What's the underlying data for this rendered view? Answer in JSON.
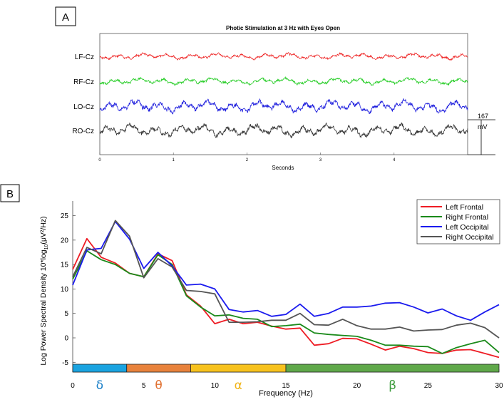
{
  "panel_a_label": "A",
  "panel_b_label": "B",
  "chart_data": [
    {
      "type": "line",
      "title": "Photic Stimulation at 3 Hz with Eyes Open",
      "xlabel": "Seconds",
      "ylabel": "",
      "xlim": [
        0,
        5
      ],
      "x_ticks": [
        0,
        1,
        2,
        3,
        4
      ],
      "x_tick_labels": [
        "0",
        "1",
        "2",
        "3",
        "4"
      ],
      "grid": false,
      "channels": [
        {
          "name": "LF-Cz",
          "color": "#ee2222",
          "amplitude": 0.5
        },
        {
          "name": "RF-Cz",
          "color": "#22cc22",
          "amplitude": 0.55
        },
        {
          "name": "LO-Cz",
          "color": "#1a1add",
          "amplitude": 1.0
        },
        {
          "name": "RO-Cz",
          "color": "#333333",
          "amplitude": 1.0
        }
      ],
      "scale_bar": {
        "value": "167",
        "unit": "mV"
      }
    },
    {
      "type": "line",
      "title": "",
      "xlabel": "Frequency (Hz)",
      "ylabel": "Log Power Spectral Density 10*log",
      "ylabel_sub": "10",
      "ylabel_unit": "(μV²/Hz)",
      "xlim": [
        0,
        30
      ],
      "ylim": [
        -7,
        28
      ],
      "x_ticks": [
        0,
        5,
        10,
        15,
        20,
        25,
        30
      ],
      "y_ticks": [
        -5,
        0,
        5,
        10,
        15,
        20,
        25
      ],
      "grid": false,
      "legend_position": "top-right",
      "x": [
        0,
        1,
        2,
        3,
        4,
        5,
        6,
        7,
        8,
        9,
        10,
        11,
        12,
        13,
        14,
        15,
        16,
        17,
        18,
        19,
        20,
        21,
        22,
        23,
        24,
        25,
        26,
        27,
        28,
        29,
        30
      ],
      "series": [
        {
          "name": "Left Frontal",
          "color": "#ee1c24",
          "values": [
            14,
            20.3,
            16.5,
            15.3,
            13.2,
            12.5,
            17.2,
            15.8,
            8.8,
            6.5,
            2.9,
            3.8,
            2.9,
            3.2,
            2.4,
            1.8,
            2.0,
            -1.5,
            -1.2,
            -0.1,
            -0.2,
            -1.3,
            -2.5,
            -1.7,
            -2.2,
            -3.0,
            -3.2,
            -2.5,
            -2.4,
            -3.2,
            -4.0
          ]
        },
        {
          "name": "Right Frontal",
          "color": "#1a8a1a",
          "values": [
            12,
            17.8,
            16.0,
            15.0,
            13.2,
            12.5,
            17.0,
            15.0,
            8.6,
            6.3,
            4.5,
            4.7,
            4.0,
            3.8,
            2.3,
            2.5,
            2.8,
            1.0,
            0.7,
            0.5,
            0.3,
            -0.5,
            -1.5,
            -1.5,
            -1.7,
            -1.8,
            -3.2,
            -2.0,
            -1.2,
            -0.5,
            -3.0
          ]
        },
        {
          "name": "Left Occipital",
          "color": "#1a1aee",
          "values": [
            10.8,
            18.0,
            18.3,
            23.8,
            20.2,
            14.2,
            17.5,
            14.7,
            10.8,
            11.0,
            10.0,
            5.8,
            5.3,
            5.6,
            4.4,
            4.8,
            6.9,
            4.4,
            5.0,
            6.3,
            6.3,
            6.5,
            7.1,
            7.2,
            6.3,
            5.1,
            5.9,
            4.5,
            3.6,
            5.3,
            6.8
          ]
        },
        {
          "name": "Right Occipital",
          "color": "#555555",
          "values": [
            12.5,
            18.5,
            17.2,
            24.0,
            20.8,
            12.3,
            16.2,
            14.5,
            9.7,
            9.5,
            9.0,
            3.2,
            3.2,
            3.3,
            3.6,
            3.6,
            5.0,
            2.7,
            2.6,
            3.8,
            2.5,
            1.8,
            1.8,
            2.2,
            1.4,
            1.6,
            1.7,
            2.6,
            3.0,
            2.1,
            0.0
          ]
        }
      ],
      "bands": [
        {
          "symbol": "δ",
          "start": 0,
          "end": 3.8,
          "color": "#1aa3e0",
          "text_color": "#1a7fc8"
        },
        {
          "symbol": "θ",
          "start": 3.8,
          "end": 8.3,
          "color": "#e8823c",
          "text_color": "#e07030"
        },
        {
          "symbol": "α",
          "start": 8.3,
          "end": 15,
          "color": "#f7c21e",
          "text_color": "#f0b418"
        },
        {
          "symbol": "β",
          "start": 15,
          "end": 30,
          "color": "#5fa84a",
          "text_color": "#3a9a3a"
        }
      ]
    }
  ]
}
